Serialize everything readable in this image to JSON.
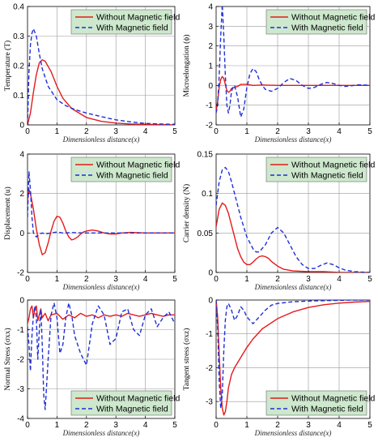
{
  "figure": {
    "colors": {
      "without": "#e41a1c",
      "with": "#1f2fd6",
      "legend_bg": "#cde8cd",
      "grid": "#999999"
    }
  },
  "chart_data": [
    {
      "type": "line",
      "ylabel": "Temperature (T)",
      "xlabel": "Dimensionless distance(x)",
      "xlim": [
        0,
        5
      ],
      "ylim": [
        0,
        0.4
      ],
      "xticks": [
        "0",
        "1",
        "2",
        "3",
        "4",
        "5"
      ],
      "yticks": [
        "0",
        "0.1",
        "0.2",
        "0.3",
        "0.4"
      ],
      "legend_position": "top-right",
      "grid": true,
      "series": [
        {
          "name": "Without Magnetic field",
          "style": "solid",
          "x": [
            0,
            0.1,
            0.2,
            0.3,
            0.4,
            0.5,
            0.6,
            0.8,
            1.0,
            1.2,
            1.5,
            2.0,
            2.5,
            3.0,
            3.5,
            4.0,
            4.5,
            5.0
          ],
          "y": [
            0,
            0.04,
            0.11,
            0.17,
            0.21,
            0.22,
            0.215,
            0.18,
            0.13,
            0.09,
            0.055,
            0.025,
            0.012,
            0.006,
            0.003,
            0.002,
            0.001,
            0.0
          ]
        },
        {
          "name": "With Magnetic field",
          "style": "dashed",
          "x": [
            0,
            0.05,
            0.1,
            0.15,
            0.2,
            0.3,
            0.4,
            0.5,
            0.7,
            1.0,
            1.3,
            1.6,
            2.0,
            2.5,
            3.0,
            3.5,
            4.0,
            4.5,
            5.0
          ],
          "y": [
            0,
            0.18,
            0.27,
            0.31,
            0.325,
            0.3,
            0.24,
            0.19,
            0.13,
            0.085,
            0.065,
            0.052,
            0.04,
            0.028,
            0.017,
            0.01,
            0.005,
            0.003,
            0.002
          ]
        }
      ]
    },
    {
      "type": "line",
      "ylabel": "Microelongation (ϕ)",
      "xlabel": "Dimensionless distance(x)",
      "xlim": [
        0,
        5
      ],
      "ylim": [
        -2,
        4
      ],
      "xticks": [
        "0",
        "1",
        "2",
        "3",
        "4",
        "5"
      ],
      "yticks": [
        "-2",
        "-1",
        "0",
        "1",
        "2",
        "3",
        "4"
      ],
      "legend_position": "top-right",
      "grid": true,
      "series": [
        {
          "name": "Without Magnetic field",
          "style": "solid",
          "x": [
            0,
            0.05,
            0.1,
            0.15,
            0.2,
            0.25,
            0.3,
            0.35,
            0.4,
            0.45,
            0.5,
            0.6,
            0.7,
            0.8,
            1.0,
            1.2,
            1.5,
            2.0,
            3.0,
            4.0,
            5.0
          ],
          "y": [
            -1.3,
            -0.8,
            -0.1,
            0.3,
            0.45,
            0.35,
            0.05,
            -0.25,
            -0.35,
            -0.3,
            -0.15,
            -0.1,
            -0.05,
            0.05,
            0.05,
            0.0,
            0.02,
            0.0,
            0.0,
            0.0,
            0.0
          ]
        },
        {
          "name": "With Magnetic field",
          "style": "dashed",
          "x": [
            0,
            0.05,
            0.1,
            0.15,
            0.2,
            0.25,
            0.3,
            0.35,
            0.4,
            0.45,
            0.5,
            0.55,
            0.6,
            0.7,
            0.8,
            0.9,
            1.0,
            1.1,
            1.2,
            1.3,
            1.4,
            1.5,
            1.6,
            1.8,
            2.0,
            2.2,
            2.4,
            2.6,
            2.8,
            3.0,
            3.2,
            3.4,
            3.6,
            3.8,
            4.0,
            4.2,
            4.4,
            4.6,
            4.8,
            5.0
          ],
          "y": [
            -1.4,
            -1.0,
            0.5,
            2.5,
            4.1,
            2.5,
            0.5,
            -1.0,
            -1.4,
            -1.0,
            -0.3,
            -0.1,
            0.0,
            -0.6,
            -1.6,
            -1.2,
            -0.1,
            0.6,
            0.85,
            0.7,
            0.3,
            0.0,
            -0.2,
            -0.3,
            -0.15,
            0.15,
            0.35,
            0.25,
            0.0,
            -0.15,
            -0.1,
            0.05,
            0.15,
            0.1,
            0.0,
            -0.05,
            -0.02,
            0.03,
            0.02,
            0.0
          ]
        }
      ]
    },
    {
      "type": "line",
      "ylabel": "Displacement (u)",
      "xlabel": "Dimensionless distance(x)",
      "xlim": [
        0,
        5
      ],
      "ylim": [
        -2,
        4
      ],
      "xticks": [
        "0",
        "1",
        "2",
        "3",
        "4",
        "5"
      ],
      "yticks": [
        "-2",
        "0",
        "2",
        "4"
      ],
      "legend_position": "top-right",
      "grid": true,
      "series": [
        {
          "name": "Without Magnetic field",
          "style": "solid",
          "x": [
            0,
            0.05,
            0.1,
            0.2,
            0.3,
            0.4,
            0.5,
            0.6,
            0.7,
            0.8,
            0.9,
            1.0,
            1.1,
            1.2,
            1.3,
            1.4,
            1.5,
            1.6,
            1.7,
            1.8,
            1.9,
            2.0,
            2.2,
            2.4,
            2.6,
            2.8,
            3.0,
            3.2,
            3.5,
            4.0,
            4.5,
            5.0
          ],
          "y": [
            1.6,
            2.2,
            2.0,
            1.2,
            0.2,
            -0.6,
            -1.1,
            -1.0,
            -0.5,
            0.1,
            0.6,
            0.85,
            0.8,
            0.5,
            0.1,
            -0.2,
            -0.35,
            -0.3,
            -0.2,
            -0.05,
            0.05,
            0.1,
            0.15,
            0.1,
            0.0,
            -0.05,
            -0.05,
            0.0,
            0.03,
            0.0,
            0.0,
            0.0
          ]
        },
        {
          "name": "With Magnetic field",
          "style": "dashed",
          "x": [
            0,
            0.05,
            0.1,
            0.15,
            0.2,
            0.3,
            0.4,
            0.5,
            0.6,
            0.8,
            1.0,
            1.2,
            1.5,
            2.0,
            2.5,
            3.0,
            3.5,
            4.0,
            4.5,
            5.0
          ],
          "y": [
            0.8,
            3.1,
            2.2,
            0.8,
            0.0,
            -0.2,
            -0.05,
            0.0,
            -0.05,
            0.0,
            0.05,
            0.0,
            0.02,
            0.0,
            0.0,
            0.0,
            0.0,
            0.0,
            0.0,
            0.0
          ]
        }
      ]
    },
    {
      "type": "line",
      "ylabel": "Carrier density (N)",
      "xlabel": "Dimensionless distance(x)",
      "xlim": [
        0,
        5
      ],
      "ylim": [
        0,
        0.15
      ],
      "xticks": [
        "0",
        "1",
        "2",
        "3",
        "4",
        "5"
      ],
      "yticks": [
        "0",
        "0.05",
        "0.1",
        "0.15"
      ],
      "legend_position": "top-right",
      "grid": true,
      "series": [
        {
          "name": "Without Magnetic field",
          "style": "solid",
          "x": [
            0,
            0.1,
            0.2,
            0.3,
            0.4,
            0.5,
            0.6,
            0.7,
            0.8,
            0.9,
            1.0,
            1.1,
            1.2,
            1.3,
            1.4,
            1.5,
            1.6,
            1.7,
            1.8,
            2.0,
            2.2,
            2.5,
            3.0,
            3.5,
            4.0,
            4.5,
            5.0
          ],
          "y": [
            0.058,
            0.08,
            0.088,
            0.085,
            0.075,
            0.06,
            0.045,
            0.03,
            0.02,
            0.013,
            0.01,
            0.01,
            0.013,
            0.017,
            0.02,
            0.021,
            0.02,
            0.018,
            0.014,
            0.008,
            0.004,
            0.002,
            0.001,
            0.001,
            0.0,
            0.0,
            0.0
          ]
        },
        {
          "name": "With Magnetic field",
          "style": "dashed",
          "x": [
            0,
            0.1,
            0.2,
            0.3,
            0.4,
            0.5,
            0.6,
            0.7,
            0.8,
            1.0,
            1.2,
            1.3,
            1.4,
            1.6,
            1.8,
            2.0,
            2.2,
            2.4,
            2.6,
            2.8,
            3.0,
            3.2,
            3.4,
            3.6,
            3.8,
            4.0,
            4.2,
            4.5,
            5.0
          ],
          "y": [
            0.085,
            0.115,
            0.13,
            0.133,
            0.128,
            0.115,
            0.1,
            0.085,
            0.07,
            0.045,
            0.03,
            0.026,
            0.026,
            0.035,
            0.05,
            0.057,
            0.05,
            0.035,
            0.02,
            0.01,
            0.005,
            0.005,
            0.009,
            0.012,
            0.01,
            0.006,
            0.003,
            0.001,
            0.0
          ]
        }
      ]
    },
    {
      "type": "line",
      "ylabel": "Normal Stress (σxx)",
      "xlabel": "Dimensionless distance(x)",
      "xlim": [
        0,
        5
      ],
      "ylim": [
        -4,
        0
      ],
      "xticks": [
        "0",
        "1",
        "2",
        "3",
        "4",
        "5"
      ],
      "yticks": [
        "-4",
        "-3",
        "-2",
        "-1",
        "0"
      ],
      "legend_position": "bottom-right",
      "grid": true,
      "series": [
        {
          "name": "Without Magnetic field",
          "style": "solid",
          "x": [
            0,
            0.05,
            0.1,
            0.15,
            0.2,
            0.25,
            0.3,
            0.35,
            0.4,
            0.45,
            0.5,
            0.6,
            0.7,
            0.8,
            1.0,
            1.2,
            1.4,
            1.6,
            1.8,
            2.0,
            2.2,
            2.4,
            2.6,
            2.8,
            3.0,
            3.2,
            3.4,
            3.6,
            3.8,
            4.0,
            4.2,
            4.4,
            4.6,
            4.8,
            5.0
          ],
          "y": [
            -0.8,
            -0.6,
            -0.3,
            -0.2,
            -0.6,
            -0.3,
            -0.2,
            -0.7,
            -0.5,
            -0.3,
            -0.6,
            -0.45,
            -0.7,
            -0.5,
            -0.45,
            -0.65,
            -0.5,
            -0.6,
            -0.45,
            -0.55,
            -0.5,
            -0.6,
            -0.5,
            -0.55,
            -0.5,
            -0.55,
            -0.45,
            -0.5,
            -0.55,
            -0.5,
            -0.45,
            -0.5,
            -0.55,
            -0.5,
            -0.5
          ]
        },
        {
          "name": "With Magnetic field",
          "style": "dashed",
          "x": [
            0,
            0.05,
            0.1,
            0.15,
            0.2,
            0.25,
            0.3,
            0.35,
            0.4,
            0.45,
            0.5,
            0.55,
            0.6,
            0.7,
            0.8,
            0.9,
            1.0,
            1.1,
            1.2,
            1.3,
            1.4,
            1.5,
            1.6,
            1.8,
            2.0,
            2.2,
            2.4,
            2.6,
            2.8,
            3.0,
            3.2,
            3.4,
            3.6,
            3.8,
            4.0,
            4.2,
            4.4,
            4.6,
            4.8,
            5.0
          ],
          "y": [
            -0.9,
            -1.5,
            -2.4,
            -1.2,
            -0.5,
            -0.2,
            -0.6,
            -2.0,
            -1.0,
            -0.3,
            -1.5,
            -3.2,
            -3.7,
            -2.0,
            -0.5,
            -0.1,
            -0.6,
            -1.8,
            -1.5,
            -0.6,
            -0.1,
            -0.5,
            -1.2,
            -1.8,
            -2.2,
            -0.8,
            -0.2,
            -0.5,
            -1.5,
            -1.3,
            -0.4,
            -0.3,
            -1.0,
            -1.2,
            -0.5,
            -0.3,
            -0.9,
            -0.6,
            -0.4,
            -0.8
          ]
        }
      ]
    },
    {
      "type": "line",
      "ylabel": "Tangent stress (σxz)",
      "xlabel": "Dimensionless distance(x)",
      "xlim": [
        0,
        5
      ],
      "ylim": [
        -3.5,
        0
      ],
      "xticks": [
        "0",
        "1",
        "2",
        "3",
        "4",
        "5"
      ],
      "yticks": [
        "-3",
        "-2",
        "-1",
        "0"
      ],
      "legend_position": "bottom-right",
      "grid": true,
      "series": [
        {
          "name": "Without Magnetic field",
          "style": "solid",
          "x": [
            0,
            0.05,
            0.1,
            0.15,
            0.2,
            0.25,
            0.3,
            0.35,
            0.4,
            0.5,
            0.6,
            0.8,
            1.0,
            1.2,
            1.5,
            2.0,
            2.5,
            3.0,
            3.5,
            4.0,
            4.5,
            5.0
          ],
          "y": [
            0,
            -0.5,
            -1.6,
            -2.6,
            -3.2,
            -3.4,
            -3.3,
            -3.0,
            -2.6,
            -2.2,
            -2.0,
            -1.7,
            -1.4,
            -1.15,
            -0.85,
            -0.55,
            -0.35,
            -0.22,
            -0.14,
            -0.09,
            -0.06,
            -0.04
          ]
        },
        {
          "name": "With Magnetic field",
          "style": "dashed",
          "x": [
            0,
            0.05,
            0.1,
            0.15,
            0.2,
            0.25,
            0.3,
            0.35,
            0.4,
            0.5,
            0.6,
            0.7,
            0.8,
            0.9,
            1.0,
            1.2,
            1.4,
            1.6,
            1.8,
            2.0,
            2.5,
            3.0,
            3.5,
            4.0,
            4.5,
            5.0
          ],
          "y": [
            0,
            -0.8,
            -2.4,
            -3.2,
            -2.8,
            -1.5,
            -0.6,
            -0.2,
            -0.1,
            -0.3,
            -0.6,
            -0.45,
            -0.2,
            -0.3,
            -0.5,
            -0.7,
            -0.5,
            -0.3,
            -0.15,
            -0.1,
            -0.05,
            -0.03,
            -0.02,
            -0.01,
            0.0,
            0.0
          ]
        }
      ]
    }
  ]
}
